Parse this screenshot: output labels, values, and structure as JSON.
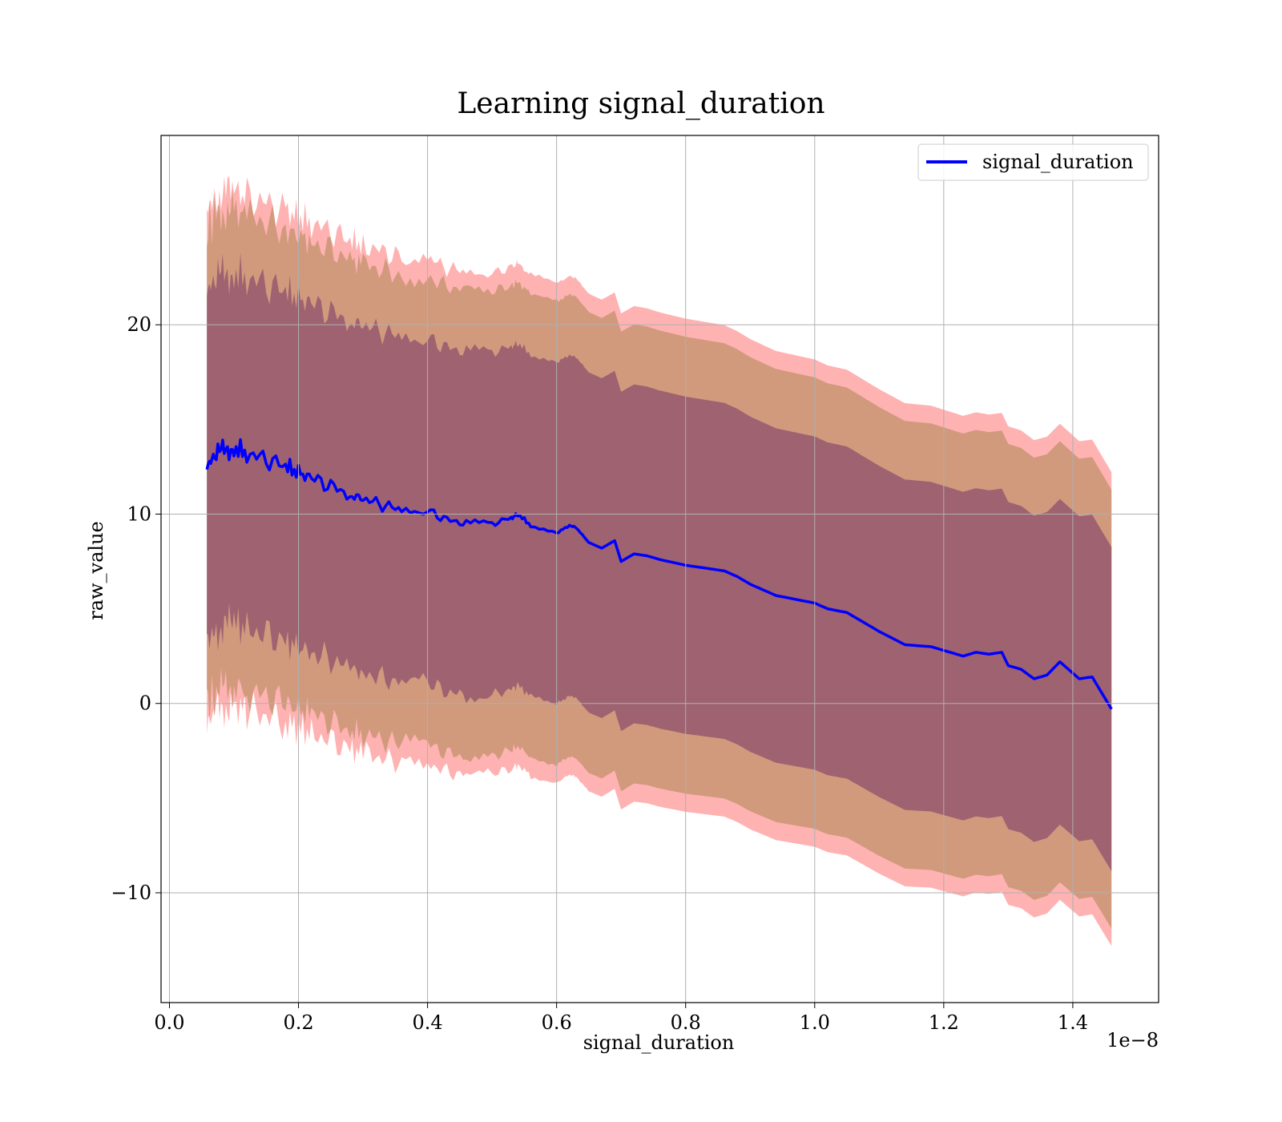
{
  "chart_data": {
    "type": "line",
    "title": "Learning signal_duration",
    "xlabel": "signal_duration",
    "ylabel": "raw_value",
    "x_offset_label": "1e−8",
    "xlim": [
      -0.013,
      1.533
    ],
    "ylim": [
      -15.8,
      30.0
    ],
    "x_ticks": [
      0.0,
      0.2,
      0.4,
      0.6,
      0.8,
      1.0,
      1.2,
      1.4
    ],
    "x_tick_labels": [
      "0.0",
      "0.2",
      "0.4",
      "0.6",
      "0.8",
      "1.0",
      "1.2",
      "1.4"
    ],
    "y_ticks": [
      -10,
      0,
      10,
      20
    ],
    "y_tick_labels": [
      "−10",
      "0",
      "10",
      "20"
    ],
    "grid": true,
    "legend_position": "upper right",
    "colors": {
      "line": "#0000ff",
      "band_outer": "#ff7f7f",
      "band_middle": "#b28a5a",
      "band_inner": "#8e4f6e",
      "grid": "#b0b0b0"
    },
    "band_spreads": [
      {
        "name": "outer",
        "spread": 13.6,
        "opacity": 0.6
      },
      {
        "name": "middle",
        "spread": 12.6,
        "opacity": 0.6
      },
      {
        "name": "inner",
        "spread": 9.3,
        "opacity": 0.75
      }
    ],
    "series": [
      {
        "name": "signal_duration",
        "x": [
          0.058,
          0.07,
          0.085,
          0.1,
          0.12,
          0.15,
          0.18,
          0.2,
          0.22,
          0.25,
          0.28,
          0.3,
          0.33,
          0.36,
          0.4,
          0.43,
          0.46,
          0.5,
          0.53,
          0.54,
          0.56,
          0.6,
          0.62,
          0.63,
          0.65,
          0.67,
          0.69,
          0.7,
          0.72,
          0.74,
          0.76,
          0.8,
          0.84,
          0.86,
          0.88,
          0.9,
          0.94,
          0.97,
          1.0,
          1.02,
          1.05,
          1.07,
          1.1,
          1.14,
          1.18,
          1.2,
          1.23,
          1.25,
          1.27,
          1.29,
          1.3,
          1.32,
          1.34,
          1.36,
          1.38,
          1.39,
          1.41,
          1.43,
          1.46
        ],
        "y": [
          12.5,
          13.1,
          13.4,
          13.5,
          13.2,
          12.9,
          12.5,
          12.2,
          11.9,
          11.5,
          11.0,
          10.8,
          10.5,
          10.2,
          10.2,
          9.7,
          9.5,
          9.5,
          9.8,
          10.0,
          9.4,
          9.0,
          9.4,
          9.3,
          8.5,
          8.2,
          8.6,
          7.5,
          7.9,
          7.8,
          7.6,
          7.3,
          7.1,
          7.0,
          6.7,
          6.3,
          5.7,
          5.5,
          5.3,
          5.0,
          4.8,
          4.4,
          3.8,
          3.1,
          3.0,
          2.8,
          2.5,
          2.7,
          2.6,
          2.7,
          2.0,
          1.8,
          1.3,
          1.5,
          2.2,
          1.9,
          1.3,
          1.4,
          -0.3
        ]
      }
    ]
  }
}
